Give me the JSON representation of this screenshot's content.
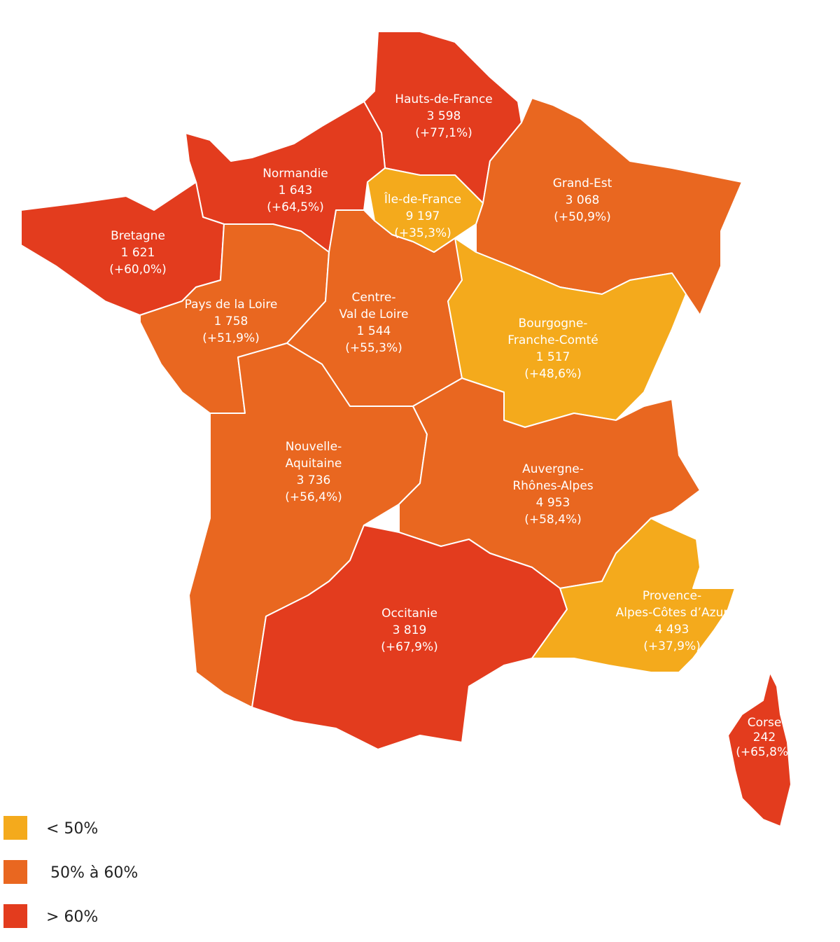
{
  "regions": [
    {
      "name": [
        "Hauts-de-France"
      ],
      "value": "3 598",
      "change": "(+77,1%)",
      "color": "#e33c1e"
    },
    {
      "name": [
        "Normandie"
      ],
      "value": "1 643",
      "change": "(+64,5%)",
      "color": "#e33c1e"
    },
    {
      "name": [
        "Île-de-France"
      ],
      "value": "9 197",
      "change": "(+35,3%)",
      "color": "#f4aa1c"
    },
    {
      "name": [
        "Grand-Est"
      ],
      "value": "3 068",
      "change": "(+50,9%)",
      "color": "#e96720"
    },
    {
      "name": [
        "Bretagne"
      ],
      "value": "1 621",
      "change": "(+60,0%)",
      "color": "#e33c1e"
    },
    {
      "name": [
        "Pays de la Loire"
      ],
      "value": "1 758",
      "change": "(+51,9%)",
      "color": "#e96720"
    },
    {
      "name": [
        "Centre-",
        "Val de Loire"
      ],
      "value": "1 544",
      "change": "(+55,3%)",
      "color": "#e96720"
    },
    {
      "name": [
        "Bourgogne-",
        "Franche-Comté"
      ],
      "value": "1 517",
      "change": "(+48,6%)",
      "color": "#f4aa1c"
    },
    {
      "name": [
        "Nouvelle-",
        "Aquitaine"
      ],
      "value": "3 736",
      "change": "(+56,4%)",
      "color": "#e96720"
    },
    {
      "name": [
        "Auvergne-",
        "Rhônes-Alpes"
      ],
      "value": "4 953",
      "change": "(+58,4%)",
      "color": "#e96720"
    },
    {
      "name": [
        "Occitanie"
      ],
      "value": "3 819",
      "change": "(+67,9%)",
      "color": "#e33c1e"
    },
    {
      "name": [
        "Provence-",
        "Alpes-Côtes d’Azur"
      ],
      "value": "4 493",
      "change": "(+37,9%)",
      "color": "#f4aa1c"
    },
    {
      "name": [
        "Corse"
      ],
      "value": "242",
      "change": "(+65,8%)",
      "color": "#e33c1e"
    }
  ],
  "legend": [
    {
      "label": "< 50%",
      "color": "#f4aa1c"
    },
    {
      "label": "50% à 60%",
      "color": "#e96720"
    },
    {
      "label": "> 60%",
      "color": "#e33c1e"
    }
  ]
}
